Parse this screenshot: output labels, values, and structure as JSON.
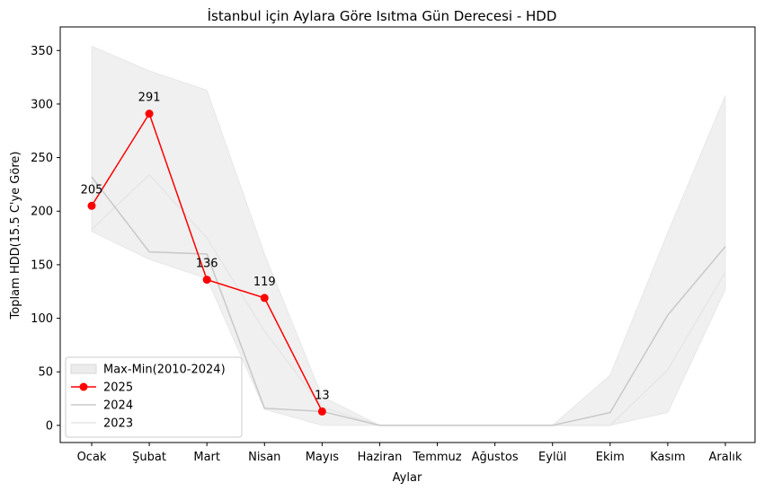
{
  "chart_data": {
    "type": "line",
    "title": "İstanbul için Aylara Göre Isıtma Gün Derecesi - HDD",
    "xlabel": "Aylar",
    "ylabel": "Toplam HDD(15.5 C'ye Göre)",
    "categories": [
      "Ocak",
      "Şubat",
      "Mart",
      "Nisan",
      "Mayıs",
      "Haziran",
      "Temmuz",
      "Ağustos",
      "Eylül",
      "Ekim",
      "Kasım",
      "Aralık"
    ],
    "ylim": [
      -16,
      372
    ],
    "yticks": [
      0,
      50,
      100,
      150,
      200,
      250,
      300,
      350
    ],
    "grid": false,
    "legend_position": "lower-left",
    "band": {
      "name": "Max-Min(2010-2024)",
      "max": [
        354,
        331,
        313,
        160,
        27,
        0,
        0,
        0,
        0,
        47,
        180,
        308
      ],
      "min": [
        181,
        155,
        137,
        15,
        0,
        0,
        0,
        0,
        0,
        0,
        12,
        127
      ],
      "color": "#d9d9d9"
    },
    "series": [
      {
        "name": "2025",
        "values": [
          205,
          291,
          136,
          119,
          13,
          null,
          null,
          null,
          null,
          null,
          null,
          null
        ],
        "color": "#ff0000",
        "labels": [
          "205",
          "291",
          "136",
          "119",
          "13"
        ]
      },
      {
        "name": "2024",
        "values": [
          232,
          162,
          160,
          16,
          13,
          0,
          0,
          0,
          0,
          12,
          103,
          167
        ],
        "color": "#c8c8c8"
      },
      {
        "name": "2023",
        "values": [
          183,
          234,
          175,
          88,
          17,
          0,
          0,
          0,
          0,
          0,
          52,
          143
        ],
        "color": "#e6e6e6"
      }
    ]
  }
}
